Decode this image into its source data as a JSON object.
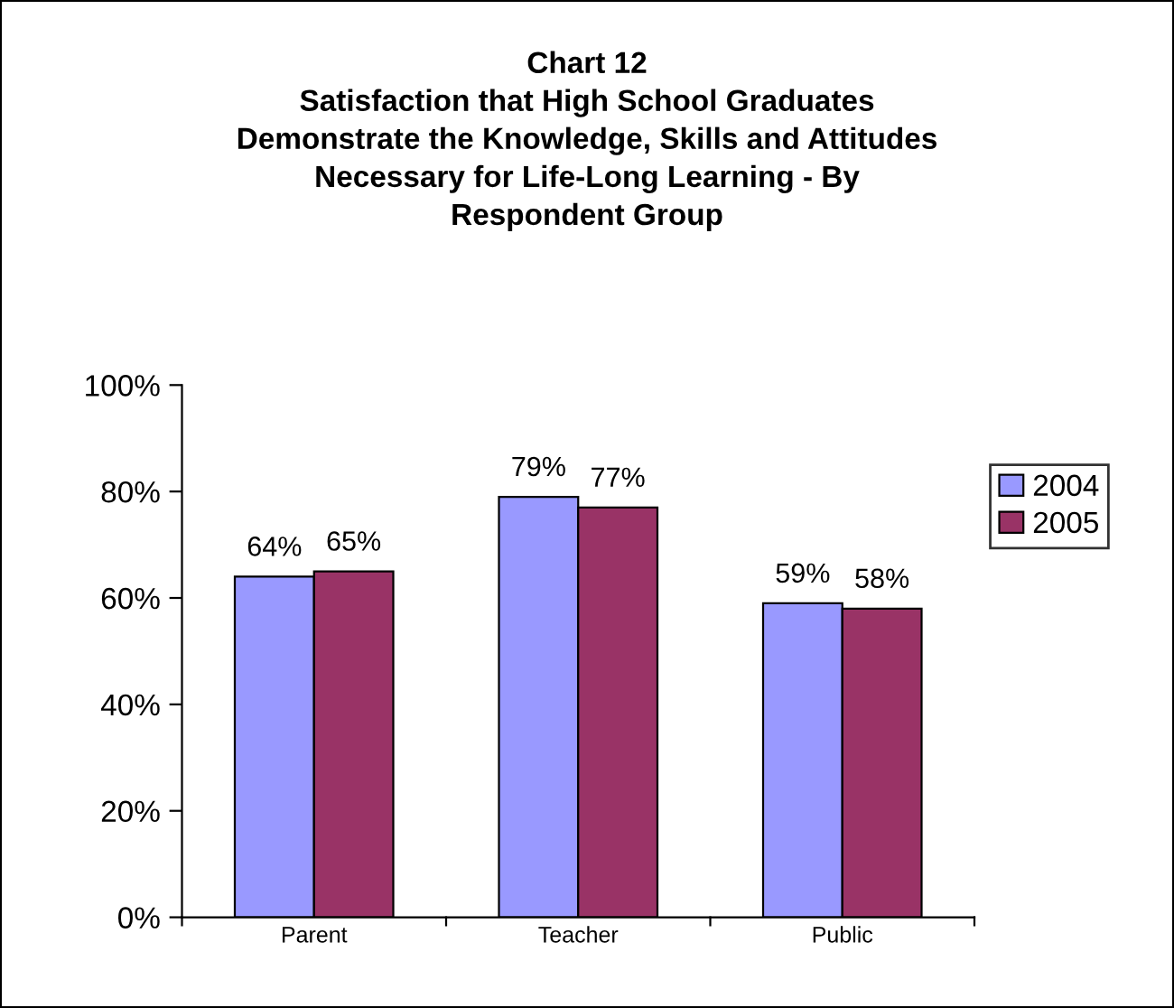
{
  "chart_data": {
    "type": "bar",
    "title": "Chart 12\nSatisfaction that High School Graduates\nDemonstrate the Knowledge, Skills and Attitudes\nNecessary for Life-Long Learning - By\nRespondent Group",
    "categories": [
      "Parent",
      "Teacher",
      "Public"
    ],
    "series": [
      {
        "name": "2004",
        "color": "#9999ff",
        "values": [
          64,
          79,
          59
        ],
        "value_labels": [
          "64%",
          "79%",
          "59%"
        ]
      },
      {
        "name": "2005",
        "color": "#993366",
        "values": [
          65,
          77,
          58
        ],
        "value_labels": [
          "65%",
          "77%",
          "58%"
        ]
      }
    ],
    "ylim": [
      0,
      100
    ],
    "yticks": [
      {
        "value": 0,
        "label": "0%"
      },
      {
        "value": 20,
        "label": "20%"
      },
      {
        "value": 40,
        "label": "40%"
      },
      {
        "value": 60,
        "label": "60%"
      },
      {
        "value": 80,
        "label": "80%"
      },
      {
        "value": 100,
        "label": "100%"
      }
    ],
    "grid": false,
    "legend": "right"
  }
}
